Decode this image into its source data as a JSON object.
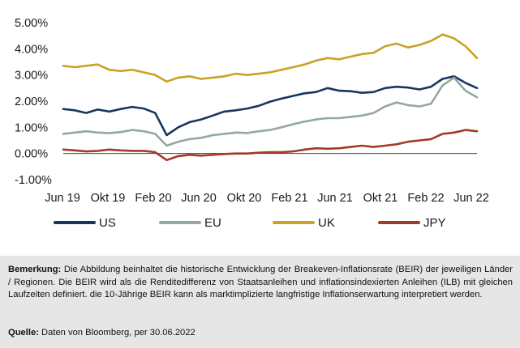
{
  "chart_data": {
    "type": "line",
    "title": "",
    "xlabel": "",
    "ylabel": "",
    "ylim": [
      -1.0,
      5.0
    ],
    "yticks": [
      "5.00%",
      "4.00%",
      "3.00%",
      "2.00%",
      "1.00%",
      "0.00%",
      "-1.00%"
    ],
    "ytick_values": [
      5,
      4,
      3,
      2,
      1,
      0,
      -1
    ],
    "xticks": [
      "Jun 19",
      "Okt 19",
      "Feb 20",
      "Jun 20",
      "Okt 20",
      "Feb 21",
      "Jun 21",
      "Okt 21",
      "Feb 22",
      "Jun 22"
    ],
    "x": [
      "2019-06",
      "2019-07",
      "2019-08",
      "2019-09",
      "2019-10",
      "2019-11",
      "2019-12",
      "2020-01",
      "2020-02",
      "2020-03",
      "2020-04",
      "2020-05",
      "2020-06",
      "2020-07",
      "2020-08",
      "2020-09",
      "2020-10",
      "2020-11",
      "2020-12",
      "2021-01",
      "2021-02",
      "2021-03",
      "2021-04",
      "2021-05",
      "2021-06",
      "2021-07",
      "2021-08",
      "2021-09",
      "2021-10",
      "2021-11",
      "2021-12",
      "2022-01",
      "2022-02",
      "2022-03",
      "2022-04",
      "2022-05",
      "2022-06"
    ],
    "grid": false,
    "legend_position": "bottom",
    "series": [
      {
        "name": "US",
        "color": "#17375e",
        "values": [
          1.7,
          1.65,
          1.55,
          1.68,
          1.6,
          1.7,
          1.78,
          1.72,
          1.55,
          0.7,
          1.0,
          1.2,
          1.3,
          1.45,
          1.6,
          1.65,
          1.72,
          1.82,
          1.98,
          2.1,
          2.2,
          2.3,
          2.35,
          2.5,
          2.4,
          2.38,
          2.32,
          2.35,
          2.5,
          2.55,
          2.52,
          2.45,
          2.55,
          2.85,
          2.95,
          2.7,
          2.5
        ]
      },
      {
        "name": "EU",
        "color": "#94a89f",
        "values": [
          0.75,
          0.8,
          0.85,
          0.8,
          0.78,
          0.82,
          0.9,
          0.85,
          0.75,
          0.3,
          0.45,
          0.55,
          0.6,
          0.7,
          0.75,
          0.8,
          0.78,
          0.85,
          0.9,
          1.0,
          1.12,
          1.22,
          1.3,
          1.35,
          1.35,
          1.4,
          1.45,
          1.55,
          1.8,
          1.95,
          1.85,
          1.8,
          1.9,
          2.6,
          2.9,
          2.4,
          2.15
        ]
      },
      {
        "name": "UK",
        "color": "#c9a227",
        "values": [
          3.35,
          3.3,
          3.35,
          3.4,
          3.2,
          3.15,
          3.2,
          3.1,
          3.0,
          2.75,
          2.9,
          2.95,
          2.85,
          2.9,
          2.95,
          3.05,
          3.0,
          3.05,
          3.1,
          3.2,
          3.3,
          3.4,
          3.55,
          3.65,
          3.6,
          3.7,
          3.8,
          3.85,
          4.1,
          4.2,
          4.05,
          4.15,
          4.3,
          4.55,
          4.4,
          4.1,
          3.65
        ]
      },
      {
        "name": "JPY",
        "color": "#a33a2a",
        "values": [
          0.15,
          0.12,
          0.08,
          0.1,
          0.15,
          0.12,
          0.1,
          0.1,
          0.05,
          -0.25,
          -0.1,
          -0.05,
          -0.08,
          -0.05,
          -0.02,
          0.0,
          0.0,
          0.03,
          0.05,
          0.05,
          0.08,
          0.15,
          0.2,
          0.18,
          0.2,
          0.25,
          0.3,
          0.25,
          0.3,
          0.35,
          0.45,
          0.5,
          0.55,
          0.75,
          0.8,
          0.9,
          0.85
        ]
      }
    ]
  },
  "legend": [
    {
      "label": "US",
      "color": "#17375e"
    },
    {
      "label": "EU",
      "color": "#94a89f"
    },
    {
      "label": "UK",
      "color": "#c9a227"
    },
    {
      "label": "JPY",
      "color": "#a33a2a"
    }
  ],
  "note": {
    "label": "Bemerkung:",
    "text": "Die Abbildung beinhaltet die historische Entwicklung der Breakeven-Inflationsrate (BEIR) der jeweiligen Länder / Regionen. Die BEIR wird als die Renditedifferenz von Staatsanleihen und inflationsindexierten Anleihen (ILB) mit gleichen Laufzeiten definiert. die 10-Jährige BEIR kann als marktimplizierte langfristige Inflationserwartung interpretiert werden."
  },
  "source": {
    "label": "Quelle:",
    "text": "Daten von Bloomberg, per 30.06.2022"
  }
}
